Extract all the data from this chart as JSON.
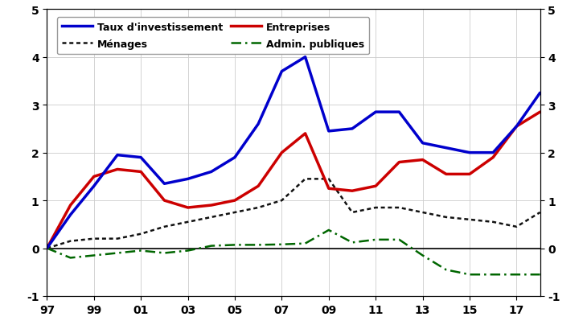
{
  "years": [
    1997,
    1998,
    1999,
    2000,
    2001,
    2002,
    2003,
    2004,
    2005,
    2006,
    2007,
    2008,
    2009,
    2010,
    2011,
    2012,
    2013,
    2014,
    2015,
    2016,
    2017,
    2018
  ],
  "taux_investissement": [
    0.0,
    0.7,
    1.3,
    1.95,
    1.9,
    1.35,
    1.45,
    1.6,
    1.9,
    2.6,
    3.7,
    4.0,
    2.45,
    2.5,
    2.85,
    2.85,
    2.2,
    2.1,
    2.0,
    2.0,
    2.55,
    3.25
  ],
  "entreprises": [
    0.0,
    0.9,
    1.5,
    1.65,
    1.6,
    1.0,
    0.85,
    0.9,
    1.0,
    1.3,
    2.0,
    2.4,
    1.25,
    1.2,
    1.3,
    1.8,
    1.85,
    1.55,
    1.55,
    1.9,
    2.55,
    2.85
  ],
  "menages": [
    0.0,
    0.15,
    0.2,
    0.2,
    0.3,
    0.45,
    0.55,
    0.65,
    0.75,
    0.85,
    1.0,
    1.45,
    1.45,
    0.75,
    0.85,
    0.85,
    0.75,
    0.65,
    0.6,
    0.55,
    0.45,
    0.75
  ],
  "admin_publiques": [
    0.0,
    -0.2,
    -0.15,
    -0.1,
    -0.05,
    -0.1,
    -0.05,
    0.05,
    0.07,
    0.07,
    0.08,
    0.1,
    0.38,
    0.12,
    0.18,
    0.18,
    -0.15,
    -0.45,
    -0.55,
    -0.55,
    -0.55,
    -0.55
  ],
  "taux_color": "#0000cc",
  "entreprises_color": "#cc0000",
  "menages_color": "#111111",
  "admin_color": "#006600",
  "ylim": [
    -1,
    5
  ],
  "yticks": [
    -1,
    0,
    1,
    2,
    3,
    4,
    5
  ],
  "legend_taux": "Taux d'investissement",
  "legend_entreprises": "Entreprises",
  "legend_menages": "Ménages",
  "legend_admin": "Admin. publiques",
  "background_color": "#ffffff",
  "grid_color": "#cccccc"
}
